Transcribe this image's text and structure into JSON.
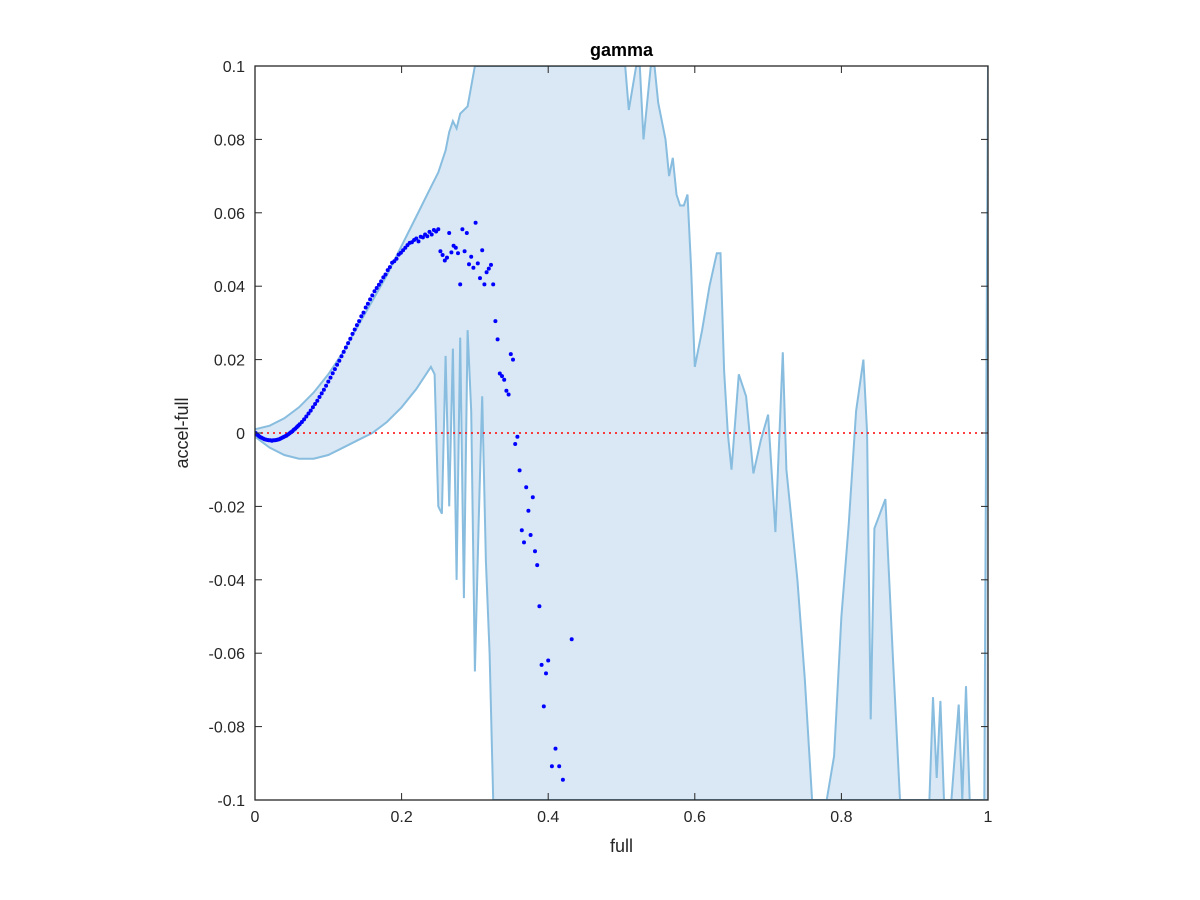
{
  "chart_data": {
    "type": "scatter",
    "title": "gamma",
    "xlabel": "full",
    "ylabel": "accel-full",
    "xlim": [
      0,
      1
    ],
    "ylim": [
      -0.1,
      0.1
    ],
    "xticks": [
      0,
      0.2,
      0.4,
      0.6,
      0.8,
      1
    ],
    "xtick_labels": [
      "0",
      "0.2",
      "0.4",
      "0.6",
      "0.8",
      "1"
    ],
    "yticks": [
      -0.1,
      -0.08,
      -0.06,
      -0.04,
      -0.02,
      0,
      0.02,
      0.04,
      0.06,
      0.08,
      0.1
    ],
    "ytick_labels": [
      "-0.1",
      "-0.08",
      "-0.06",
      "-0.04",
      "-0.02",
      "0",
      "0.02",
      "0.04",
      "0.06",
      "0.08",
      "0.1"
    ],
    "grid": false,
    "reference_line": {
      "y": 0,
      "style": "dotted",
      "color": "#ff0000"
    },
    "band": {
      "fill_color": "#d9e8f4",
      "edge_color": "#88bddf",
      "upper": [
        [
          0,
          0.001
        ],
        [
          0.02,
          0.002
        ],
        [
          0.04,
          0.004
        ],
        [
          0.06,
          0.007
        ],
        [
          0.08,
          0.011
        ],
        [
          0.1,
          0.016
        ],
        [
          0.12,
          0.022
        ],
        [
          0.14,
          0.029
        ],
        [
          0.16,
          0.036
        ],
        [
          0.18,
          0.043
        ],
        [
          0.2,
          0.051
        ],
        [
          0.22,
          0.059
        ],
        [
          0.24,
          0.067
        ],
        [
          0.25,
          0.071
        ],
        [
          0.26,
          0.077
        ],
        [
          0.265,
          0.082
        ],
        [
          0.27,
          0.085
        ],
        [
          0.275,
          0.083
        ],
        [
          0.28,
          0.087
        ],
        [
          0.29,
          0.089
        ],
        [
          0.3,
          0.1
        ],
        [
          0.5,
          0.1
        ],
        [
          0.505,
          0.1
        ],
        [
          0.51,
          0.088
        ],
        [
          0.52,
          0.1
        ],
        [
          0.525,
          0.1
        ],
        [
          0.53,
          0.08
        ],
        [
          0.54,
          0.1
        ],
        [
          0.545,
          0.1
        ],
        [
          0.55,
          0.09
        ],
        [
          0.56,
          0.08
        ],
        [
          0.565,
          0.07
        ],
        [
          0.57,
          0.075
        ],
        [
          0.575,
          0.065
        ],
        [
          0.58,
          0.062
        ],
        [
          0.585,
          0.062
        ],
        [
          0.59,
          0.065
        ],
        [
          0.595,
          0.045
        ],
        [
          0.6,
          0.018
        ],
        [
          0.61,
          0.028
        ],
        [
          0.62,
          0.04
        ],
        [
          0.63,
          0.049
        ],
        [
          0.635,
          0.049
        ],
        [
          0.64,
          0.017
        ],
        [
          0.645,
          0.0
        ],
        [
          0.65,
          -0.01
        ],
        [
          0.66,
          0.016
        ],
        [
          0.67,
          0.01
        ],
        [
          0.68,
          -0.011
        ],
        [
          0.69,
          -0.002
        ],
        [
          0.7,
          0.005
        ],
        [
          0.71,
          -0.027
        ],
        [
          0.72,
          0.022
        ],
        [
          0.725,
          -0.01
        ],
        [
          0.73,
          -0.02
        ],
        [
          0.74,
          -0.04
        ],
        [
          0.75,
          -0.067
        ],
        [
          0.76,
          -0.1
        ],
        [
          0.78,
          -0.1
        ],
        [
          0.79,
          -0.088
        ],
        [
          0.8,
          -0.05
        ],
        [
          0.81,
          -0.025
        ],
        [
          0.82,
          0.006
        ],
        [
          0.83,
          0.02
        ],
        [
          0.835,
          0.0
        ],
        [
          0.84,
          -0.078
        ],
        [
          0.845,
          -0.026
        ],
        [
          0.86,
          -0.018
        ],
        [
          0.87,
          -0.06
        ],
        [
          0.88,
          -0.1
        ],
        [
          0.92,
          -0.1
        ],
        [
          0.925,
          -0.072
        ],
        [
          0.93,
          -0.094
        ],
        [
          0.935,
          -0.073
        ],
        [
          0.94,
          -0.1
        ],
        [
          0.95,
          -0.1
        ],
        [
          0.96,
          -0.074
        ],
        [
          0.965,
          -0.1
        ],
        [
          0.97,
          -0.069
        ],
        [
          0.975,
          -0.1
        ],
        [
          0.995,
          -0.1
        ],
        [
          1.0,
          0.1
        ]
      ],
      "lower": [
        [
          0,
          -0.001
        ],
        [
          0.02,
          -0.004
        ],
        [
          0.04,
          -0.006
        ],
        [
          0.06,
          -0.007
        ],
        [
          0.08,
          -0.007
        ],
        [
          0.1,
          -0.006
        ],
        [
          0.12,
          -0.004
        ],
        [
          0.14,
          -0.002
        ],
        [
          0.16,
          0.0
        ],
        [
          0.18,
          0.003
        ],
        [
          0.2,
          0.007
        ],
        [
          0.22,
          0.012
        ],
        [
          0.24,
          0.018
        ],
        [
          0.245,
          0.016
        ],
        [
          0.25,
          -0.02
        ],
        [
          0.255,
          -0.022
        ],
        [
          0.26,
          0.021
        ],
        [
          0.265,
          -0.02
        ],
        [
          0.27,
          0.023
        ],
        [
          0.275,
          -0.04
        ],
        [
          0.28,
          0.026
        ],
        [
          0.285,
          -0.045
        ],
        [
          0.29,
          0.028
        ],
        [
          0.295,
          0.006
        ],
        [
          0.3,
          -0.065
        ],
        [
          0.305,
          -0.025
        ],
        [
          0.31,
          0.01
        ],
        [
          0.315,
          -0.035
        ],
        [
          0.32,
          -0.06
        ],
        [
          0.325,
          -0.1
        ],
        [
          0.34,
          -0.1
        ],
        [
          0.36,
          -0.1
        ],
        [
          0.4,
          -0.1
        ],
        [
          0.5,
          -0.1
        ],
        [
          0.6,
          -0.1
        ],
        [
          0.7,
          -0.1
        ],
        [
          0.8,
          -0.1
        ],
        [
          0.9,
          -0.1
        ],
        [
          1.0,
          -0.1
        ]
      ]
    },
    "series": [
      {
        "color": "#0000ff",
        "marker": "dot",
        "x": [
          0.001,
          0.003,
          0.005,
          0.007,
          0.009,
          0.011,
          0.013,
          0.015,
          0.017,
          0.019,
          0.021,
          0.023,
          0.025,
          0.027,
          0.029,
          0.031,
          0.033,
          0.035,
          0.037,
          0.039,
          0.041,
          0.043,
          0.045,
          0.047,
          0.049,
          0.051,
          0.053,
          0.055,
          0.057,
          0.059,
          0.061,
          0.064,
          0.067,
          0.07,
          0.073,
          0.076,
          0.079,
          0.082,
          0.085,
          0.088,
          0.091,
          0.094,
          0.097,
          0.1,
          0.103,
          0.106,
          0.109,
          0.112,
          0.115,
          0.118,
          0.121,
          0.124,
          0.127,
          0.13,
          0.133,
          0.136,
          0.139,
          0.142,
          0.145,
          0.148,
          0.151,
          0.154,
          0.157,
          0.16,
          0.163,
          0.166,
          0.169,
          0.172,
          0.175,
          0.178,
          0.181,
          0.184,
          0.187,
          0.19,
          0.193,
          0.196,
          0.199,
          0.202,
          0.205,
          0.208,
          0.211,
          0.214,
          0.217,
          0.22,
          0.223,
          0.226,
          0.229,
          0.232,
          0.235,
          0.238,
          0.241,
          0.244,
          0.247,
          0.25,
          0.253,
          0.256,
          0.259,
          0.262,
          0.265,
          0.268,
          0.271,
          0.274,
          0.277,
          0.28,
          0.283,
          0.286,
          0.289,
          0.292,
          0.295,
          0.298,
          0.301,
          0.304,
          0.307,
          0.31,
          0.313,
          0.316,
          0.319,
          0.322,
          0.325,
          0.328,
          0.331,
          0.334,
          0.337,
          0.34,
          0.343,
          0.346,
          0.349,
          0.352,
          0.355,
          0.358,
          0.361,
          0.364,
          0.367,
          0.37,
          0.373,
          0.376,
          0.379,
          0.382,
          0.385,
          0.388,
          0.391,
          0.394,
          0.397,
          0.4,
          0.405,
          0.41,
          0.415,
          0.42,
          0.432
        ],
        "y": [
          0.0,
          -0.0005,
          -0.0008,
          -0.0011,
          -0.0013,
          -0.0015,
          -0.0017,
          -0.0018,
          -0.0019,
          -0.002,
          -0.002,
          -0.0021,
          -0.002,
          -0.002,
          -0.0019,
          -0.0018,
          -0.0017,
          -0.0015,
          -0.0013,
          -0.0011,
          -0.0009,
          -0.0007,
          -0.0004,
          -0.0001,
          0.0002,
          0.0005,
          0.0009,
          0.0012,
          0.0016,
          0.002,
          0.0024,
          0.003,
          0.0037,
          0.0045,
          0.0053,
          0.0061,
          0.007,
          0.0079,
          0.0088,
          0.0098,
          0.0108,
          0.0118,
          0.0129,
          0.014,
          0.0151,
          0.0163,
          0.0174,
          0.0186,
          0.0197,
          0.0209,
          0.0221,
          0.0233,
          0.0245,
          0.0257,
          0.027,
          0.0282,
          0.0294,
          0.0305,
          0.0318,
          0.0328,
          0.0342,
          0.0352,
          0.0364,
          0.0375,
          0.0386,
          0.0395,
          0.0404,
          0.0413,
          0.0424,
          0.0432,
          0.0444,
          0.0452,
          0.0464,
          0.0468,
          0.0475,
          0.0486,
          0.0491,
          0.0498,
          0.0505,
          0.0512,
          0.0518,
          0.052,
          0.0526,
          0.053,
          0.0522,
          0.0535,
          0.0533,
          0.0541,
          0.0536,
          0.0548,
          0.0541,
          0.0553,
          0.0549,
          0.0555,
          0.0495,
          0.0485,
          0.047,
          0.0478,
          0.0545,
          0.0492,
          0.051,
          0.0505,
          0.049,
          0.0405,
          0.0555,
          0.0495,
          0.0545,
          0.046,
          0.048,
          0.045,
          0.0573,
          0.0462,
          0.0422,
          0.0498,
          0.0405,
          0.0438,
          0.0448,
          0.0458,
          0.0405,
          0.0305,
          0.0255,
          0.0162,
          0.0155,
          0.0145,
          0.0115,
          0.0105,
          0.0215,
          0.02,
          -0.003,
          -0.001,
          -0.0102,
          -0.0265,
          -0.0298,
          -0.0148,
          -0.0212,
          -0.0278,
          -0.0175,
          -0.0322,
          -0.036,
          -0.0472,
          -0.0632,
          -0.0745,
          -0.0655,
          -0.062,
          -0.0908,
          -0.086,
          -0.0908,
          -0.0945,
          -0.0562
        ]
      }
    ]
  }
}
